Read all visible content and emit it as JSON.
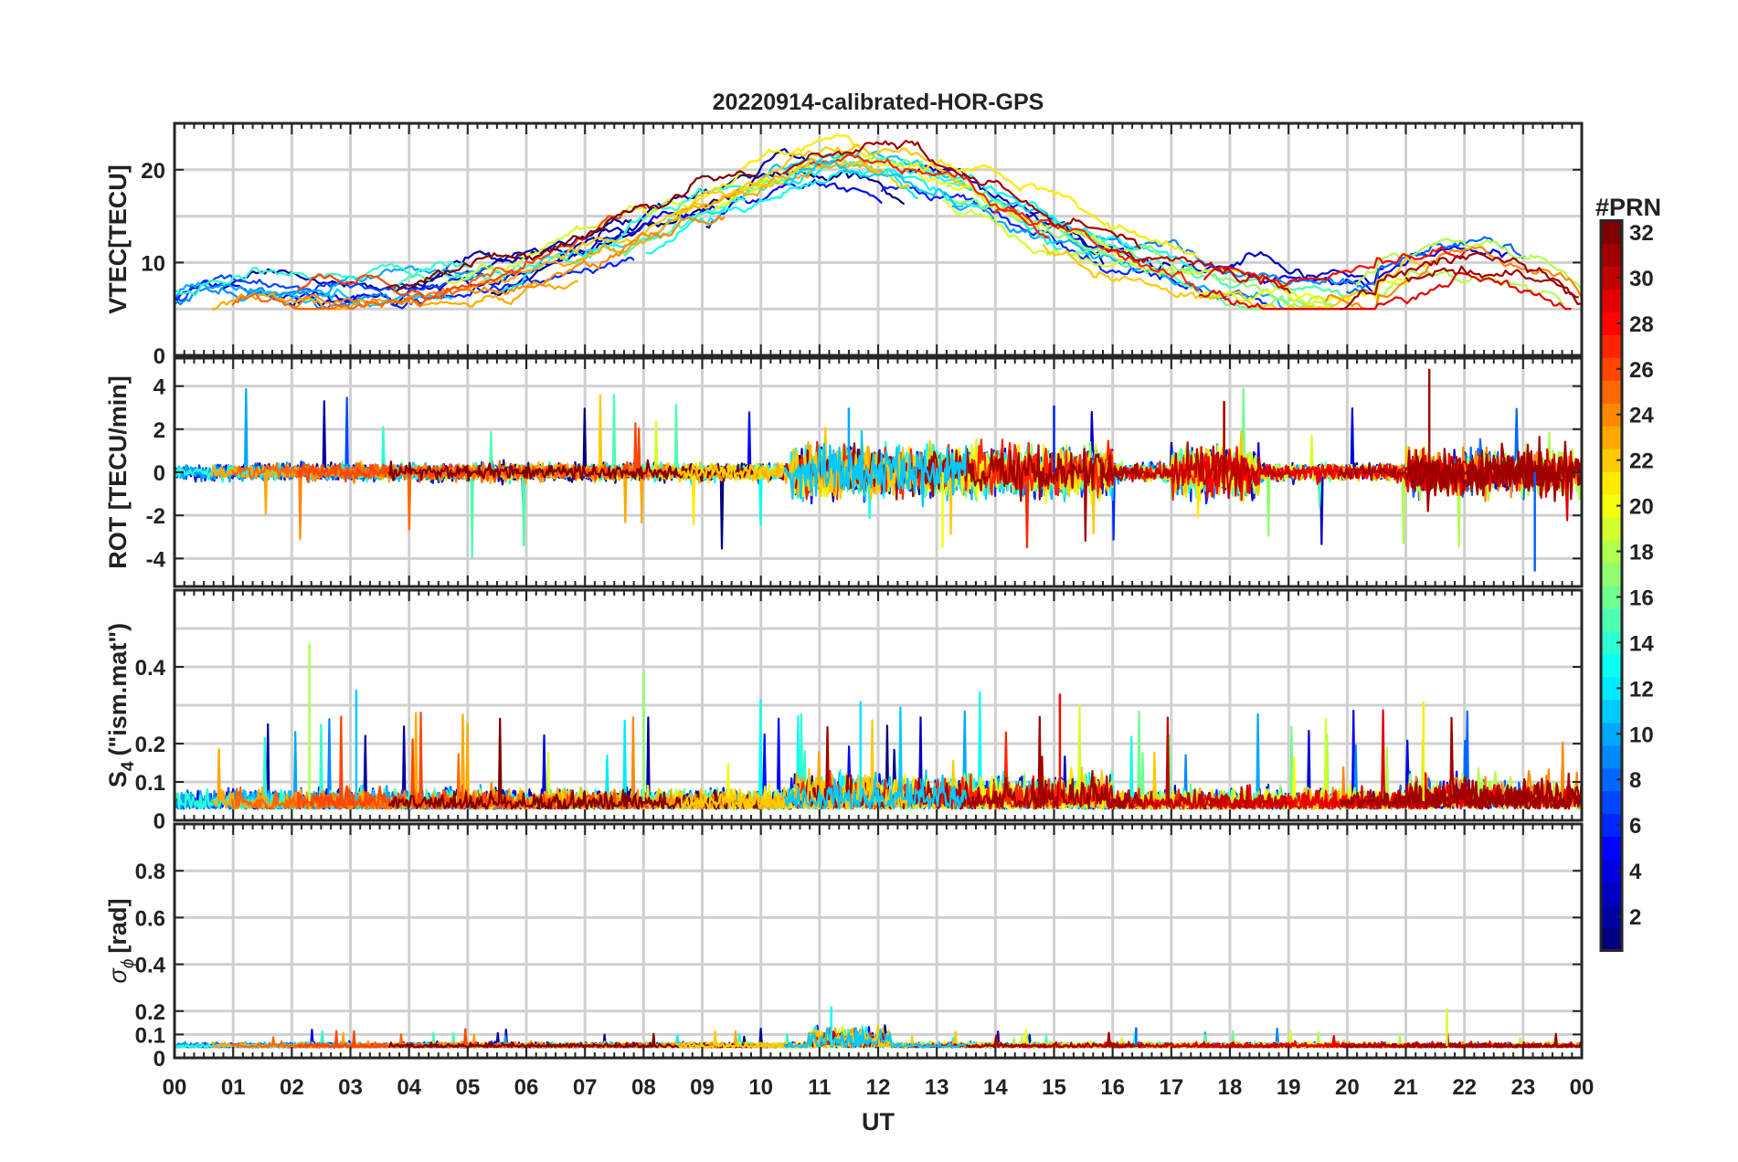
{
  "chart_data": {
    "type": "line",
    "title": "20220914-calibrated-HOR-GPS",
    "xlabel": "UT",
    "x_tick_labels": [
      "00",
      "01",
      "02",
      "03",
      "04",
      "05",
      "06",
      "07",
      "08",
      "09",
      "10",
      "11",
      "12",
      "13",
      "14",
      "15",
      "16",
      "17",
      "18",
      "19",
      "20",
      "21",
      "22",
      "23",
      "00"
    ],
    "xlim_hours": [
      0,
      24
    ],
    "grid": true,
    "colorbar": {
      "label": "#PRN",
      "range": [
        1,
        32
      ],
      "tick_labels": [
        "2",
        "4",
        "6",
        "8",
        "10",
        "12",
        "14",
        "16",
        "18",
        "20",
        "22",
        "24",
        "26",
        "28",
        "30",
        "32"
      ],
      "ticks": [
        2,
        4,
        6,
        8,
        10,
        12,
        14,
        16,
        18,
        20,
        22,
        24,
        26,
        28,
        30,
        32
      ],
      "colormap": "jet"
    },
    "panels": [
      {
        "id": "vtec",
        "ylabel": "VTEC[TECU]",
        "ylim": [
          0,
          25
        ],
        "tick_labels": [
          "0",
          "10",
          "20"
        ],
        "ticks": [
          0,
          10,
          20
        ],
        "gridlines": [
          0,
          5,
          10,
          15,
          20,
          25
        ],
        "kind": "tec",
        "note": "One VTEC trace per satellite PRN; values ~5-25 TECU, daytime maximum near 09-15 UT"
      },
      {
        "id": "rot",
        "ylabel": "ROT [TECU/min]",
        "ylim": [
          -5.3,
          5.3
        ],
        "tick_labels": [
          "-4",
          "-2",
          "0",
          "2",
          "4"
        ],
        "ticks": [
          -4,
          -2,
          0,
          2,
          4
        ],
        "gridlines": [
          -4,
          -2,
          0,
          2,
          4
        ],
        "kind": "rot",
        "note": "Rate of TEC change per PRN; mostly within +/-1, spikes to about +4.8 and -4.6"
      },
      {
        "id": "s4",
        "ylabel_main": "S",
        "ylabel_sub": "4",
        "ylabel_rest": "(\"ism.mat\")",
        "ylim": [
          0,
          0.6
        ],
        "tick_labels": [
          "0",
          "0.1",
          "0.2",
          "0.4"
        ],
        "ticks": [
          0,
          0.1,
          0.2,
          0.4
        ],
        "gridlines": [
          0.1,
          0.2,
          0.3,
          0.4,
          0.5
        ],
        "kind": "s4",
        "note": "Amplitude scintillation index per PRN; mostly below 0.15, peaks to ~0.46 near 02.3 UT"
      },
      {
        "id": "sigma_phi",
        "ylabel_main": "σ",
        "ylabel_sub": "ϕ",
        "ylabel_rest": "[rad]",
        "ylim": [
          0,
          1
        ],
        "tick_labels": [
          "0",
          "0.1",
          "0.2",
          "0.4",
          "0.6",
          "0.8"
        ],
        "ticks": [
          0,
          0.1,
          0.2,
          0.4,
          0.6,
          0.8
        ],
        "gridlines": [
          0.1,
          0.2,
          0.4,
          0.6,
          0.8
        ],
        "kind": "sigma",
        "note": "Phase scintillation index per PRN; mostly ~0.03-0.08, peak ~0.22 near 11.2 UT"
      }
    ]
  }
}
